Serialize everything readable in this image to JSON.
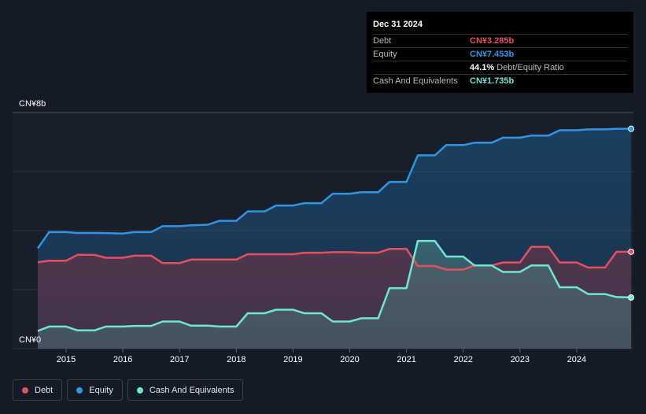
{
  "tooltip": {
    "date": "Dec 31 2024",
    "rows": [
      {
        "label": "Debt",
        "value": "CN¥3.285b",
        "color": "#e5505e"
      },
      {
        "label": "Equity",
        "value": "CN¥7.453b",
        "color": "#2f96e3"
      },
      {
        "label": "",
        "value": "44.1%",
        "suffix": "Debt/Equity Ratio",
        "color": "#ffffff"
      },
      {
        "label": "Cash And Equivalents",
        "value": "CN¥1.735b",
        "color": "#6fe6d4"
      }
    ]
  },
  "legend": [
    {
      "label": "Debt",
      "color": "#e5505e"
    },
    {
      "label": "Equity",
      "color": "#2f96e3"
    },
    {
      "label": "Cash And Equivalents",
      "color": "#6fe6d4"
    }
  ],
  "chart_data": {
    "type": "area",
    "y_top_label": "CN¥8b",
    "y_bottom_label": "CN¥0",
    "ylim": [
      0,
      8
    ],
    "xlim": [
      2014.5,
      2025.0
    ],
    "x_ticks": [
      "2015",
      "2016",
      "2017",
      "2018",
      "2019",
      "2020",
      "2021",
      "2022",
      "2023",
      "2024"
    ],
    "grid": true,
    "series": [
      {
        "name": "Equity",
        "color": "#2f96e3",
        "unit": "CN¥b",
        "x": [
          2014.5,
          2014.7,
          2015.0,
          2015.2,
          2015.6,
          2016.0,
          2016.2,
          2016.5,
          2016.7,
          2017.0,
          2017.2,
          2017.5,
          2017.7,
          2018.0,
          2018.2,
          2018.5,
          2018.7,
          2019.0,
          2019.2,
          2019.5,
          2019.7,
          2020.0,
          2020.2,
          2020.5,
          2020.7,
          2021.0,
          2021.2,
          2021.5,
          2021.7,
          2022.0,
          2022.2,
          2022.5,
          2022.7,
          2023.0,
          2023.2,
          2023.5,
          2023.7,
          2024.0,
          2024.2,
          2024.5,
          2024.7,
          2024.96
        ],
        "values": [
          3.4,
          3.95,
          3.95,
          3.92,
          3.92,
          3.9,
          3.95,
          3.95,
          4.15,
          4.15,
          4.18,
          4.2,
          4.33,
          4.33,
          4.65,
          4.65,
          4.85,
          4.85,
          4.93,
          4.93,
          5.25,
          5.25,
          5.3,
          5.3,
          5.65,
          5.65,
          6.55,
          6.55,
          6.9,
          6.9,
          6.98,
          6.98,
          7.15,
          7.15,
          7.22,
          7.22,
          7.4,
          7.4,
          7.43,
          7.43,
          7.45,
          7.45
        ]
      },
      {
        "name": "Debt",
        "color": "#e5505e",
        "unit": "CN¥b",
        "x": [
          2014.5,
          2014.7,
          2015.0,
          2015.2,
          2015.5,
          2015.7,
          2016.0,
          2016.2,
          2016.5,
          2016.7,
          2017.0,
          2017.2,
          2017.5,
          2017.7,
          2018.0,
          2018.2,
          2018.5,
          2018.7,
          2019.0,
          2019.2,
          2019.5,
          2019.7,
          2020.0,
          2020.2,
          2020.5,
          2020.7,
          2021.0,
          2021.2,
          2021.5,
          2021.7,
          2022.0,
          2022.2,
          2022.5,
          2022.7,
          2023.0,
          2023.2,
          2023.5,
          2023.7,
          2024.0,
          2024.2,
          2024.5,
          2024.7,
          2024.96
        ],
        "values": [
          2.93,
          2.98,
          2.98,
          3.18,
          3.18,
          3.08,
          3.08,
          3.15,
          3.15,
          2.9,
          2.9,
          3.02,
          3.02,
          3.02,
          3.02,
          3.2,
          3.2,
          3.2,
          3.2,
          3.25,
          3.25,
          3.27,
          3.27,
          3.25,
          3.25,
          3.38,
          3.38,
          2.8,
          2.8,
          2.68,
          2.68,
          2.82,
          2.82,
          2.92,
          2.92,
          3.45,
          3.45,
          2.92,
          2.92,
          2.75,
          2.75,
          3.28,
          3.285
        ]
      },
      {
        "name": "Cash And Equivalents",
        "color": "#6fe6d4",
        "unit": "CN¥b",
        "x": [
          2014.5,
          2014.7,
          2015.0,
          2015.2,
          2015.5,
          2015.7,
          2016.0,
          2016.2,
          2016.5,
          2016.7,
          2017.0,
          2017.2,
          2017.5,
          2017.7,
          2018.0,
          2018.2,
          2018.5,
          2018.7,
          2019.0,
          2019.2,
          2019.5,
          2019.7,
          2020.0,
          2020.2,
          2020.5,
          2020.7,
          2021.0,
          2021.2,
          2021.5,
          2021.7,
          2022.0,
          2022.2,
          2022.5,
          2022.7,
          2023.0,
          2023.2,
          2023.5,
          2023.7,
          2024.0,
          2024.2,
          2024.5,
          2024.7,
          2024.96
        ],
        "values": [
          0.6,
          0.75,
          0.75,
          0.62,
          0.62,
          0.75,
          0.75,
          0.77,
          0.77,
          0.92,
          0.92,
          0.78,
          0.78,
          0.75,
          0.75,
          1.2,
          1.2,
          1.32,
          1.32,
          1.2,
          1.2,
          0.92,
          0.92,
          1.03,
          1.03,
          2.05,
          2.05,
          3.65,
          3.65,
          3.12,
          3.12,
          2.82,
          2.82,
          2.6,
          2.6,
          2.82,
          2.82,
          2.08,
          2.08,
          1.85,
          1.85,
          1.75,
          1.735
        ]
      }
    ]
  }
}
